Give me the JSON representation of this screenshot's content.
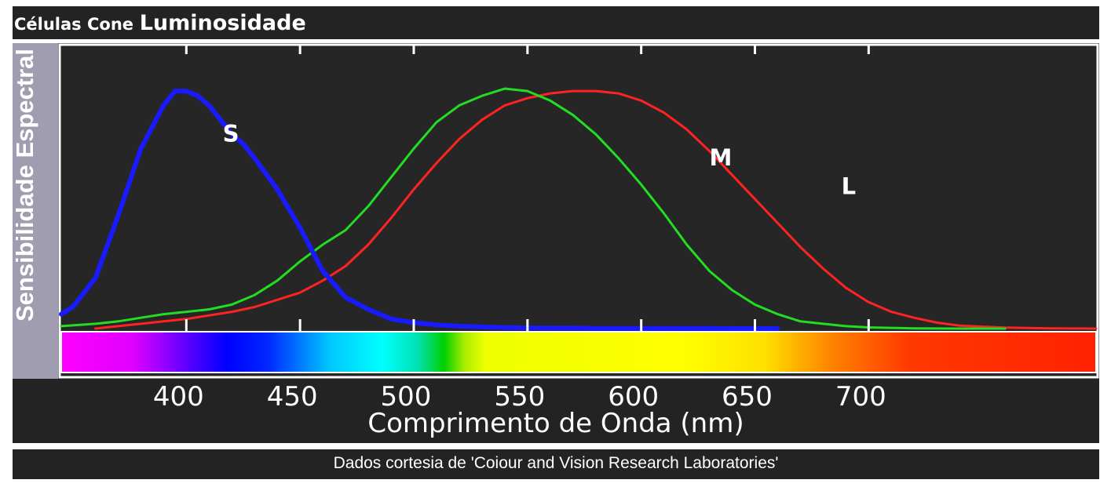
{
  "header": {
    "title_part1": "Células Cone",
    "title_part2": "Luminosidade"
  },
  "footer": {
    "credit": "Dados cortesia de 'Coiour and Vision Research Laboratories'"
  },
  "colors": {
    "S": "#1a1aff",
    "M": "#22dd22",
    "L": "#ff2222",
    "background": "#262626"
  },
  "chart_data": {
    "type": "line",
    "title": "Células Cone Luminosidade",
    "xlabel": "Comprimento de Onda (nm)",
    "ylabel": "Sensibilidade Espectral",
    "xlim": [
      345,
      800
    ],
    "ylim": [
      0,
      1.0
    ],
    "xticks": [
      400,
      450,
      500,
      550,
      600,
      650,
      700
    ],
    "xtick_labels": [
      "400",
      "450",
      "500",
      "550",
      "600",
      "650",
      "700"
    ],
    "grid": false,
    "legend": "labels on curves",
    "series": [
      {
        "name": "S",
        "x": [
          345,
          350,
          360,
          370,
          380,
          390,
          395,
          400,
          405,
          410,
          420,
          425,
          430,
          440,
          450,
          460,
          470,
          480,
          490,
          500,
          510,
          520,
          530,
          540,
          550,
          560,
          570,
          580,
          600,
          620,
          640,
          660
        ],
        "y": [
          0.06,
          0.09,
          0.21,
          0.47,
          0.75,
          0.93,
          0.99,
          0.99,
          0.97,
          0.93,
          0.81,
          0.77,
          0.71,
          0.58,
          0.42,
          0.24,
          0.13,
          0.08,
          0.04,
          0.025,
          0.015,
          0.01,
          0.007,
          0.004,
          0.003,
          0.002,
          0.002,
          0.001,
          0.001,
          0.001,
          0.0,
          0.0
        ]
      },
      {
        "name": "M",
        "x": [
          345,
          360,
          370,
          380,
          390,
          400,
          410,
          420,
          430,
          440,
          450,
          460,
          470,
          480,
          490,
          500,
          510,
          520,
          530,
          540,
          550,
          560,
          570,
          580,
          590,
          600,
          610,
          620,
          630,
          640,
          650,
          660,
          670,
          680,
          690,
          700,
          710,
          720,
          740,
          760
        ],
        "y": [
          0.01,
          0.02,
          0.03,
          0.045,
          0.06,
          0.07,
          0.08,
          0.1,
          0.14,
          0.2,
          0.28,
          0.35,
          0.41,
          0.51,
          0.63,
          0.75,
          0.86,
          0.93,
          0.97,
          1.0,
          0.99,
          0.95,
          0.89,
          0.81,
          0.71,
          0.6,
          0.48,
          0.35,
          0.24,
          0.16,
          0.1,
          0.06,
          0.03,
          0.02,
          0.01,
          0.005,
          0.003,
          0.001,
          0.0,
          0.0
        ]
      },
      {
        "name": "L",
        "x": [
          360,
          370,
          380,
          390,
          400,
          410,
          420,
          430,
          440,
          450,
          460,
          470,
          480,
          490,
          500,
          510,
          520,
          530,
          540,
          550,
          560,
          570,
          580,
          590,
          600,
          610,
          620,
          630,
          640,
          650,
          660,
          670,
          680,
          690,
          700,
          710,
          720,
          730,
          740,
          760,
          780,
          800
        ],
        "y": [
          0.0,
          0.01,
          0.02,
          0.03,
          0.04,
          0.055,
          0.07,
          0.09,
          0.12,
          0.15,
          0.2,
          0.26,
          0.35,
          0.46,
          0.58,
          0.69,
          0.79,
          0.87,
          0.93,
          0.96,
          0.98,
          0.99,
          0.99,
          0.98,
          0.95,
          0.9,
          0.83,
          0.74,
          0.64,
          0.54,
          0.44,
          0.34,
          0.25,
          0.17,
          0.11,
          0.07,
          0.045,
          0.025,
          0.012,
          0.004,
          0.001,
          0.0
        ]
      }
    ]
  }
}
